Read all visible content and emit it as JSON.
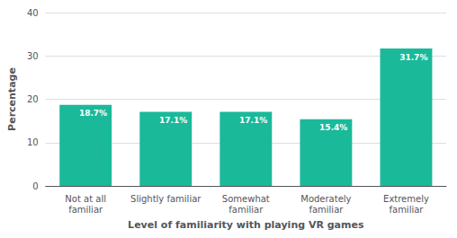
{
  "chart_data": {
    "type": "bar",
    "categories": [
      "Not at all\nfamiliar",
      "Slightly familiar",
      "Somewhat\nfamiliar",
      "Moderately\nfamiliar",
      "Extremely\nfamiliar"
    ],
    "values": [
      18.7,
      17.1,
      17.1,
      15.4,
      31.7
    ],
    "value_labels": [
      "18.7%",
      "17.1%",
      "17.1%",
      "15.4%",
      "31.7%"
    ],
    "data_labels": true,
    "color": "#1ab99a",
    "xlabel": "Level of familiarity with playing VR games",
    "ylabel": "Percentage",
    "ylim": [
      0,
      40
    ],
    "yticks": [
      0,
      10,
      20,
      30,
      40
    ],
    "grid": true
  }
}
